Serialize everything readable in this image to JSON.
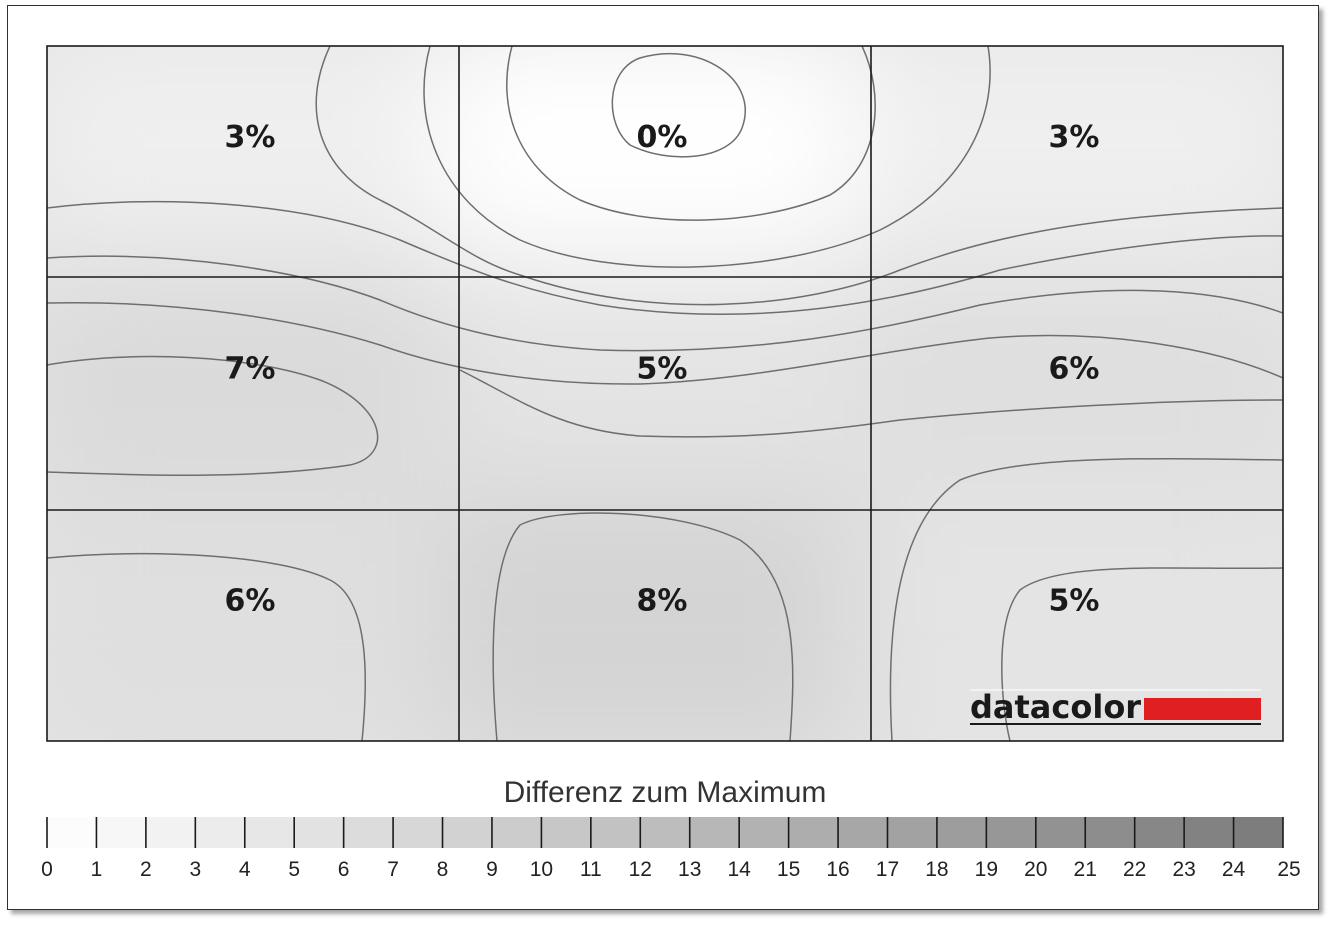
{
  "chart_data": {
    "type": "heatmap",
    "grid_rows": 3,
    "grid_cols": 3,
    "values": [
      [
        3,
        0,
        3
      ],
      [
        7,
        5,
        6
      ],
      [
        6,
        8,
        5
      ]
    ],
    "unit": "%",
    "legend": {
      "title": "Differenz zum Maximum",
      "min": 0,
      "max": 25,
      "ticks": [
        0,
        1,
        2,
        3,
        4,
        5,
        6,
        7,
        8,
        9,
        10,
        11,
        12,
        13,
        14,
        15,
        16,
        17,
        18,
        19,
        20,
        21,
        22,
        23,
        24,
        25
      ],
      "color_low": "#ffffff",
      "color_high": "#7a7a7a"
    },
    "contour_lines": true
  },
  "logo": {
    "text": "datacolor",
    "accent_color": "#e02020"
  }
}
